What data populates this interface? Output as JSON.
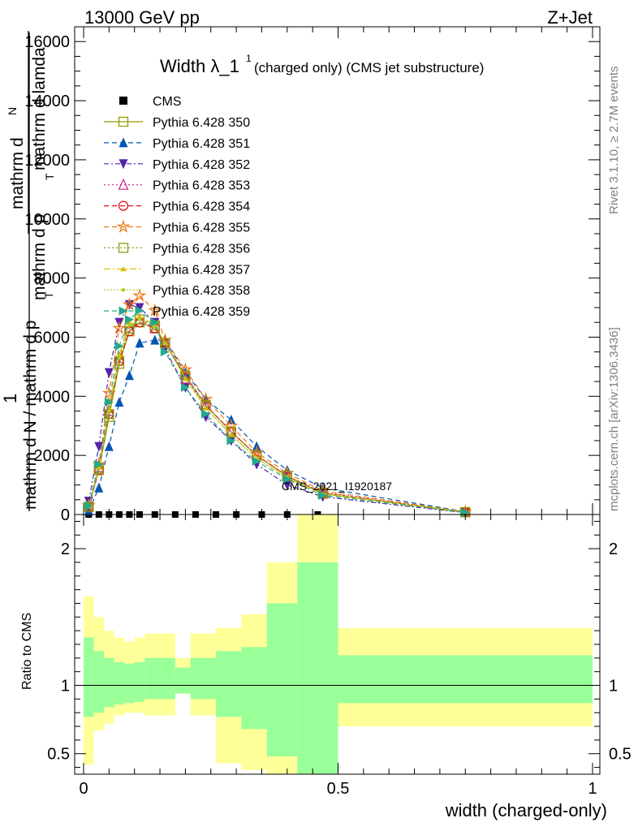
{
  "header": {
    "left": "13000 GeV pp",
    "right": "Z+Jet"
  },
  "side_labels": {
    "rivet": "Rivet 3.1.10, ≥ 2.7M events",
    "mcplots": "mcplots.cern.ch [arXiv:1306.3436]"
  },
  "watermark": "CMS_2021_I1920187",
  "chart_data": [
    {
      "type": "line",
      "title_main": "Width λ_1",
      "title_sup": "1",
      "title_rest": "(charged only) (CMS jet substructure)",
      "ylabel_parts": [
        "mathrm d",
        "N",
        "mathrm d p",
        "T",
        "mathrm d lamda",
        "1",
        "mathrm d N / mathrm d p",
        "T"
      ],
      "xlim": [
        0,
        1
      ],
      "ylim": [
        0,
        16500
      ],
      "yticks": [
        0,
        2000,
        4000,
        6000,
        8000,
        10000,
        12000,
        14000,
        16000
      ],
      "ytick_labels": [
        "0",
        "2000",
        "4000",
        "6000",
        "8000",
        "10000",
        "12000",
        "14000",
        "16000"
      ],
      "cms": {
        "name": "CMS",
        "x": [
          0.01,
          0.03,
          0.05,
          0.07,
          0.09,
          0.11,
          0.14,
          0.18,
          0.22,
          0.26,
          0.3,
          0.35,
          0.4,
          0.46
        ],
        "y": [
          0,
          0,
          0,
          0,
          0,
          0,
          0,
          0,
          0,
          0,
          0,
          0,
          0,
          0
        ]
      },
      "x": [
        0.01,
        0.03,
        0.05,
        0.07,
        0.09,
        0.11,
        0.14,
        0.16,
        0.2,
        0.24,
        0.29,
        0.34,
        0.4,
        0.47,
        0.75
      ],
      "series": [
        {
          "name": "Pythia 6.428 350",
          "color": "#999900",
          "marker": "square-open",
          "dash": "",
          "values": [
            250,
            1500,
            3300,
            5100,
            6200,
            6500,
            6300,
            5800,
            4700,
            3700,
            2800,
            2000,
            1300,
            700,
            80
          ]
        },
        {
          "name": "Pythia 6.428 351",
          "color": "#0055b3",
          "marker": "triangle-up",
          "dash": "6,4",
          "values": [
            120,
            900,
            2300,
            3800,
            4700,
            5800,
            5900,
            5900,
            4800,
            3900,
            3200,
            2300,
            1500,
            900,
            100
          ]
        },
        {
          "name": "Pythia 6.428 352",
          "color": "#5522aa",
          "marker": "triangle-down",
          "dash": "6,3,2,3",
          "values": [
            450,
            2300,
            4800,
            6500,
            7100,
            7000,
            6500,
            5600,
            4300,
            3300,
            2500,
            1700,
            1000,
            600,
            60
          ]
        },
        {
          "name": "Pythia 6.428 353",
          "color": "#cc2288",
          "marker": "triangle-open",
          "dash": "2,3",
          "values": [
            270,
            1600,
            3500,
            5300,
            6300,
            6600,
            6300,
            5800,
            4600,
            3700,
            2800,
            2000,
            1300,
            750,
            80
          ]
        },
        {
          "name": "Pythia 6.428 354",
          "color": "#dd1111",
          "marker": "circle-open",
          "dash": "6,4",
          "values": [
            260,
            1500,
            3400,
            5200,
            6200,
            6500,
            6300,
            5800,
            4700,
            3700,
            2800,
            2000,
            1300,
            720,
            80
          ]
        },
        {
          "name": "Pythia 6.428 355",
          "color": "#ee7711",
          "marker": "star-open",
          "dash": "6,4",
          "values": [
            300,
            1700,
            4100,
            6300,
            7100,
            7400,
            6900,
            5900,
            4900,
            3900,
            3000,
            2100,
            1400,
            800,
            90
          ]
        },
        {
          "name": "Pythia 6.428 356",
          "color": "#889911",
          "marker": "square-open",
          "dash": "2,3",
          "values": [
            260,
            1550,
            3400,
            5200,
            6300,
            6600,
            6400,
            5800,
            4700,
            3700,
            2800,
            2000,
            1300,
            730,
            80
          ]
        },
        {
          "name": "Pythia 6.428 357",
          "color": "#ddbb00",
          "marker": "tri-small",
          "dash": "8,3,2,3",
          "values": [
            280,
            1600,
            3600,
            5400,
            6500,
            6700,
            6400,
            5800,
            4600,
            3600,
            2700,
            1900,
            1250,
            700,
            80
          ]
        },
        {
          "name": "Pythia 6.428 358",
          "color": "#aacc22",
          "marker": "dot",
          "dash": "2,2",
          "values": [
            270,
            1600,
            3500,
            5300,
            6400,
            6600,
            6400,
            5800,
            4600,
            3600,
            2700,
            1900,
            1250,
            700,
            80
          ]
        },
        {
          "name": "Pythia 6.428 359",
          "color": "#22aa88",
          "marker": "triangle-right",
          "dash": "6,4",
          "values": [
            290,
            1700,
            3800,
            5700,
            6600,
            6900,
            6500,
            5500,
            4300,
            3400,
            2500,
            1800,
            1200,
            650,
            70
          ]
        }
      ]
    },
    {
      "type": "area",
      "ylabel": "Ratio to CMS",
      "xlabel": "width (charged-only)",
      "xlim": [
        0,
        1
      ],
      "ylim": [
        0.35,
        2.25
      ],
      "yticks": [
        0.5,
        1,
        2
      ],
      "ytick_labels": [
        "0.5",
        "1",
        "2"
      ],
      "xticks": [
        0,
        0.5,
        1
      ],
      "xtick_labels": [
        "0",
        "0.5",
        "1"
      ],
      "bins": [
        0,
        0.02,
        0.04,
        0.06,
        0.08,
        0.1,
        0.12,
        0.18,
        0.21,
        0.26,
        0.31,
        0.36,
        0.42,
        0.5,
        1.0
      ],
      "band_inner_lo": [
        0.77,
        0.8,
        0.84,
        0.86,
        0.87,
        0.88,
        0.9,
        0.94,
        0.9,
        0.77,
        0.68,
        0.48,
        0.35,
        0.87
      ],
      "band_inner_hi": [
        1.35,
        1.25,
        1.2,
        1.17,
        1.16,
        1.17,
        1.2,
        1.13,
        1.2,
        1.25,
        1.28,
        1.6,
        1.9,
        1.22
      ],
      "band_outer_lo": [
        0.42,
        0.67,
        0.72,
        0.78,
        0.8,
        0.8,
        0.78,
        0.94,
        0.78,
        0.43,
        0.38,
        0.35,
        0.35,
        0.7
      ],
      "band_outer_hi": [
        1.65,
        1.5,
        1.4,
        1.35,
        1.32,
        1.35,
        1.38,
        1.2,
        1.38,
        1.42,
        1.52,
        1.9,
        2.35,
        1.42
      ]
    }
  ]
}
